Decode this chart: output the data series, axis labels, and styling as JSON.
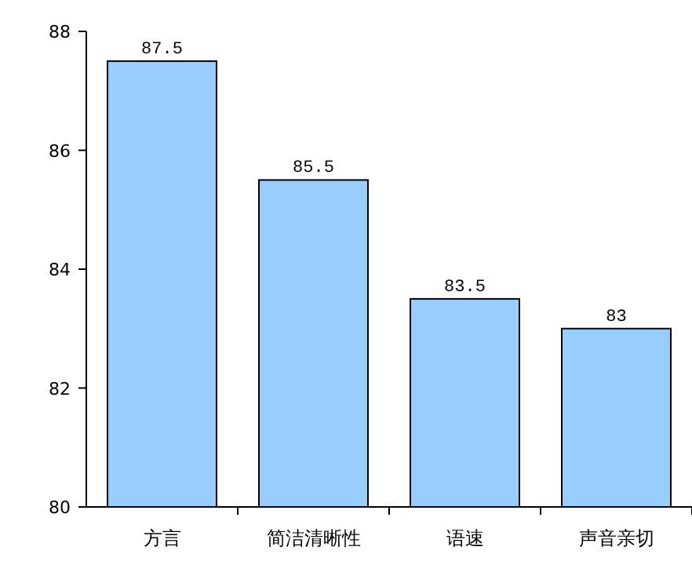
{
  "chart_data": {
    "type": "bar",
    "categories": [
      "方言",
      "简洁清晰性",
      "语速",
      "声音亲切"
    ],
    "values": [
      87.5,
      85.5,
      83.5,
      83
    ],
    "color": "#99ccff",
    "ylim": [
      80,
      88
    ],
    "yticks": [
      80,
      82,
      84,
      86,
      88
    ],
    "data_labels": true,
    "grid": false
  }
}
